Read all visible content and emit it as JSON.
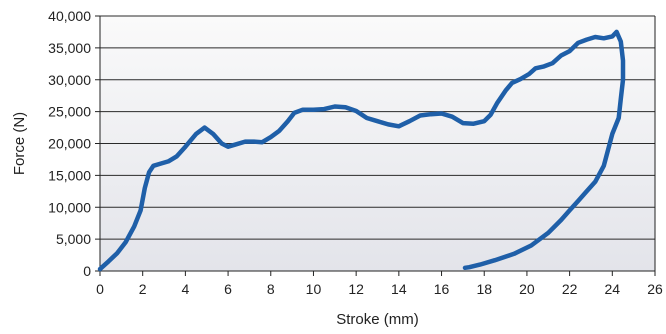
{
  "chart_data": {
    "type": "line",
    "title": "",
    "xlabel": "Stroke (mm)",
    "ylabel": "Force (N)",
    "xlim": [
      0,
      26
    ],
    "ylim": [
      0,
      40000
    ],
    "x_ticks": [
      0,
      2,
      4,
      6,
      8,
      10,
      12,
      14,
      16,
      18,
      20,
      22,
      24,
      26
    ],
    "y_ticks": [
      0,
      5000,
      10000,
      15000,
      20000,
      25000,
      30000,
      35000,
      40000
    ],
    "y_tick_labels": [
      "0",
      "5,000",
      "10,000",
      "15,000",
      "20,000",
      "25,000",
      "30,000",
      "35,000",
      "40,000"
    ],
    "grid": "horizontal",
    "legend": "none",
    "colors": {
      "line": "#1f5fa8",
      "plot_bg_top": "#fafafa",
      "plot_bg_bottom": "#e3e4ea",
      "grid": "#2a2a2a"
    },
    "series": [
      {
        "x": [
          0.0,
          0.4,
          0.8,
          1.2,
          1.6,
          1.9,
          2.1,
          2.3,
          2.5,
          2.8,
          3.2,
          3.6,
          4.0,
          4.5,
          4.9,
          5.3,
          5.7,
          6.0,
          6.3,
          6.8,
          7.2,
          7.6,
          8.0,
          8.4,
          8.8,
          9.1,
          9.5,
          10.0,
          10.5,
          11.0,
          11.5,
          12.0,
          12.5,
          13.0,
          13.5,
          14.0,
          14.5,
          15.0,
          15.5,
          16.0,
          16.5,
          17.0,
          17.5,
          18.0,
          18.3,
          18.6,
          19.0,
          19.3,
          19.7,
          20.1,
          20.4,
          20.8,
          21.2,
          21.6,
          22.0,
          22.4,
          22.8,
          23.2,
          23.6,
          24.0,
          24.2,
          24.4,
          24.5,
          24.5,
          24.4,
          24.3,
          24.0,
          23.6,
          23.2,
          22.8,
          22.4,
          22.0,
          21.6,
          21.0,
          20.2,
          19.4,
          18.5,
          17.8,
          17.3,
          17.1
        ],
        "y": [
          300,
          1500,
          2800,
          4500,
          7000,
          9500,
          13000,
          15500,
          16500,
          16800,
          17200,
          18000,
          19500,
          21500,
          22500,
          21500,
          20000,
          19500,
          19800,
          20300,
          20300,
          20200,
          21000,
          22000,
          23500,
          24800,
          25300,
          25300,
          25400,
          25800,
          25700,
          25100,
          24000,
          23500,
          23000,
          22700,
          23500,
          24400,
          24600,
          24700,
          24200,
          23200,
          23100,
          23500,
          24500,
          26300,
          28300,
          29500,
          30100,
          30900,
          31800,
          32100,
          32600,
          33800,
          34500,
          35800,
          36300,
          36700,
          36500,
          36800,
          37500,
          36000,
          33000,
          30000,
          27000,
          24000,
          21500,
          16500,
          14000,
          12500,
          11000,
          9500,
          8000,
          6000,
          4000,
          2700,
          1700,
          1000,
          600,
          500
        ]
      }
    ]
  }
}
